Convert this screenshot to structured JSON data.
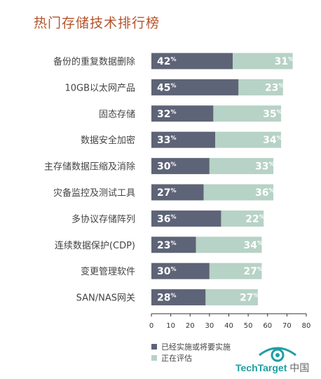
{
  "title": "热门存储技术排行榜",
  "colors": {
    "implemented": "#5e6477",
    "evaluating": "#b7d2c6",
    "title": "#b5542a",
    "brand": "#1f9ea3"
  },
  "legend": [
    {
      "label": "已经实施或将要实施",
      "color": "#5e6477"
    },
    {
      "label": "正在评估",
      "color": "#b7d2c6"
    }
  ],
  "logo": {
    "name": "TechTarget",
    "suffix": "中国",
    "icon": "eye-logo-icon"
  },
  "chart_data": {
    "type": "bar",
    "orientation": "horizontal",
    "stacked": true,
    "categories": [
      "备份的重复数据删除",
      "10GB以太网产品",
      "固态存储",
      "数据安全加密",
      "主存储数据压缩及消除",
      "灾备监控及测试工具",
      "多协议存储阵列",
      "连续数据保护(CDP)",
      "变更管理软件",
      "SAN/NAS网关"
    ],
    "series": [
      {
        "name": "已经实施或将要实施",
        "values": [
          42,
          45,
          32,
          33,
          30,
          27,
          36,
          23,
          30,
          28
        ]
      },
      {
        "name": "正在评估",
        "values": [
          31,
          23,
          35,
          34,
          33,
          36,
          22,
          34,
          27,
          27
        ]
      }
    ],
    "value_suffix": "%",
    "xlim": [
      0,
      80
    ],
    "xticks": [
      0,
      10,
      20,
      30,
      40,
      50,
      60,
      70,
      80
    ],
    "title": "热门存储技术排行榜",
    "xlabel": "",
    "ylabel": "",
    "grid": false,
    "legend_position": "bottom"
  }
}
